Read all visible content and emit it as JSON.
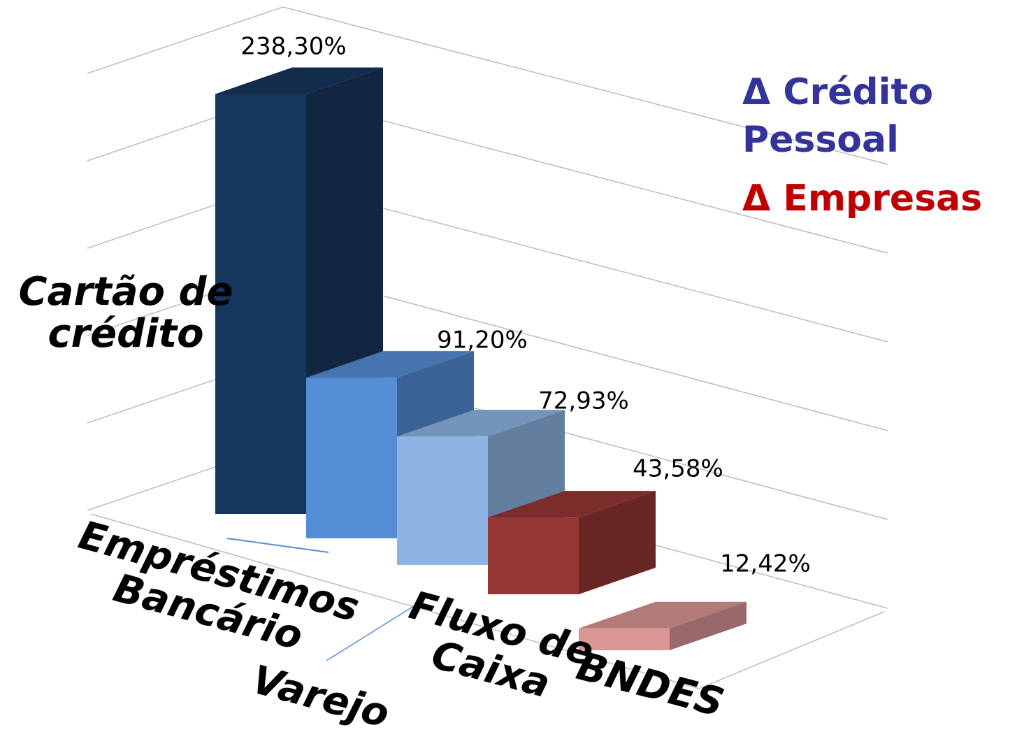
{
  "chart_data": {
    "type": "bar3d",
    "categories": [
      "Cartão de crédito",
      "Empréstimos Bancário",
      "Varejo",
      "Fluxo de Caixa",
      "BNDES"
    ],
    "values": [
      238.3,
      91.2,
      72.93,
      43.58,
      12.42
    ],
    "value_labels": [
      "238,30%",
      "91,20%",
      "72,93%",
      "43,58%",
      "12,42%"
    ],
    "colors": [
      "#17365d",
      "#558ed5",
      "#8db4e2",
      "#953735",
      "#d99694"
    ],
    "ylim": [
      0,
      250
    ],
    "yticks": [
      0,
      50,
      100,
      150,
      200,
      250
    ],
    "grid": true,
    "annotations": [
      {
        "text": "Δ Crédito Pessoal",
        "color": "#333399"
      },
      {
        "text": "Δ Empresas",
        "color": "#c00000"
      }
    ]
  }
}
